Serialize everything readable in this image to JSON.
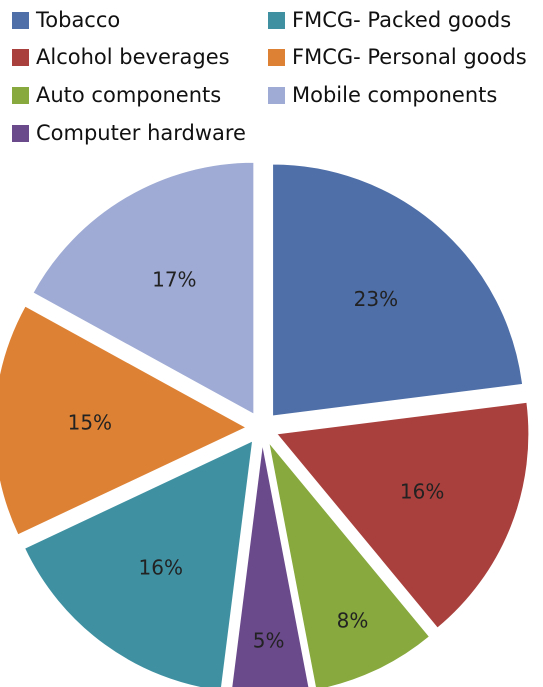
{
  "chart_data": {
    "type": "pie",
    "categories": [
      "Tobacco",
      "Alcohol beverages",
      "Auto components",
      "Computer hardware",
      "FMCG- Packed goods",
      "FMCG- Personal goods",
      "Mobile components"
    ],
    "values": [
      23,
      16,
      8,
      5,
      16,
      15,
      17
    ],
    "value_labels": [
      "23%",
      "16%",
      "8%",
      "5%",
      "16%",
      "15%",
      "17%"
    ],
    "colors": [
      "#4f6fa8",
      "#a9403d",
      "#87a93d",
      "#6b4a8c",
      "#3f91a2",
      "#dd8235",
      "#9fabd4"
    ],
    "legend": {
      "placement": "top",
      "items": [
        {
          "label": "Tobacco",
          "color": "#4f6fa8"
        },
        {
          "label": "FMCG- Packed goods",
          "color": "#3f91a2"
        },
        {
          "label": "Alcohol beverages",
          "color": "#a9403d"
        },
        {
          "label": "FMCG- Personal goods",
          "color": "#dd8235"
        },
        {
          "label": "Auto components",
          "color": "#87a93d"
        },
        {
          "label": "Mobile components",
          "color": "#9fabd4"
        },
        {
          "label": "Computer hardware",
          "color": "#6b4a8c"
        }
      ]
    },
    "exploded": true
  }
}
